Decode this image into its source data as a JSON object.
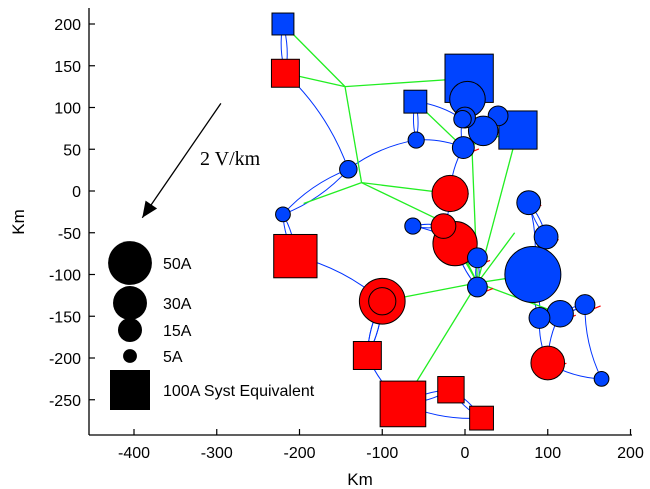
{
  "chart_data": {
    "type": "scatter",
    "title": "",
    "xlabel": "Km",
    "ylabel": "Km",
    "xlim": [
      -450,
      200
    ],
    "ylim": [
      -285,
      210
    ],
    "x_ticks": [
      -400,
      -300,
      -200,
      -100,
      0,
      100,
      200
    ],
    "y_ticks": [
      200,
      150,
      100,
      50,
      0,
      -50,
      -100,
      -150,
      -200,
      -250
    ],
    "grid": false,
    "electric_field": {
      "label": "2 V/km",
      "vector_km": {
        "x0": -295,
        "y0": 105,
        "x1": -390,
        "y1": -32
      }
    },
    "legend": {
      "items": [
        {
          "label": "50A",
          "current": 50,
          "marker": "circle"
        },
        {
          "label": "30A",
          "current": 30,
          "marker": "circle"
        },
        {
          "label": "15A",
          "current": 15,
          "marker": "circle"
        },
        {
          "label": "5A",
          "current": 5,
          "marker": "circle"
        },
        {
          "label": "100A Syst Equivalent",
          "current": 100,
          "marker": "square"
        }
      ]
    },
    "colors": {
      "positive": "#ff0000",
      "negative": "#0044ff",
      "lines_500kv": "#22ee22",
      "lines_low": "#0033ff",
      "field_arrow": "#000000"
    },
    "system_equivalents": [
      {
        "x": -220,
        "y": 200,
        "current": 10,
        "sign": "negative"
      },
      {
        "x": -217,
        "y": 141,
        "current": 17,
        "sign": "positive"
      },
      {
        "x": 5,
        "y": 135,
        "current": 54,
        "sign": "negative"
      },
      {
        "x": -60,
        "y": 107,
        "current": 11,
        "sign": "negative"
      },
      {
        "x": 64,
        "y": 73,
        "current": 33,
        "sign": "negative"
      },
      {
        "x": -205,
        "y": -78,
        "current": 43,
        "sign": "positive"
      },
      {
        "x": -118,
        "y": -197,
        "current": 17,
        "sign": "positive"
      },
      {
        "x": -75,
        "y": -255,
        "current": 48,
        "sign": "positive"
      },
      {
        "x": -17,
        "y": -238,
        "current": 15,
        "sign": "positive"
      },
      {
        "x": 20,
        "y": -272,
        "current": 12,
        "sign": "positive"
      }
    ],
    "substations": [
      {
        "x": 3,
        "y": 110,
        "current": 29,
        "sign": "negative"
      },
      {
        "x": 40,
        "y": 90,
        "current": 9,
        "sign": "negative"
      },
      {
        "x": 22,
        "y": 72,
        "current": 20,
        "sign": "negative"
      },
      {
        "x": 0,
        "y": 88,
        "current": 10,
        "sign": "negative"
      },
      {
        "x": -2,
        "y": 52,
        "current": 11,
        "sign": "negative"
      },
      {
        "x": -18,
        "y": -3,
        "current": 30,
        "sign": "positive"
      },
      {
        "x": 77,
        "y": -14,
        "current": 13,
        "sign": "negative"
      },
      {
        "x": -12,
        "y": -63,
        "current": 45,
        "sign": "positive"
      },
      {
        "x": -26,
        "y": -42,
        "current": 14,
        "sign": "positive"
      },
      {
        "x": 98,
        "y": -55,
        "current": 13,
        "sign": "negative"
      },
      {
        "x": 82,
        "y": -100,
        "current": 72,
        "sign": "negative"
      },
      {
        "x": -100,
        "y": -132,
        "current": 48,
        "sign": "positive"
      },
      {
        "x": -100,
        "y": -132,
        "current": 17,
        "sign": "positive"
      },
      {
        "x": 115,
        "y": -147,
        "current": 16,
        "sign": "negative"
      },
      {
        "x": 100,
        "y": -206,
        "current": 26,
        "sign": "positive"
      },
      {
        "x": 90,
        "y": -152,
        "current": 10,
        "sign": "negative"
      },
      {
        "x": 145,
        "y": -136,
        "current": 9,
        "sign": "negative"
      },
      {
        "x": -141,
        "y": 26,
        "current": 7,
        "sign": "negative"
      },
      {
        "x": -220,
        "y": -28,
        "current": 5,
        "sign": "negative"
      },
      {
        "x": -59,
        "y": 61,
        "current": 6,
        "sign": "negative"
      },
      {
        "x": -63,
        "y": -42,
        "current": 6,
        "sign": "negative"
      },
      {
        "x": 15,
        "y": -80,
        "current": 9,
        "sign": "negative"
      },
      {
        "x": 15,
        "y": -115,
        "current": 9,
        "sign": "negative"
      },
      {
        "x": -3,
        "y": 86,
        "current": 7,
        "sign": "negative"
      },
      {
        "x": 165,
        "y": -225,
        "current": 5,
        "sign": "negative"
      }
    ]
  }
}
